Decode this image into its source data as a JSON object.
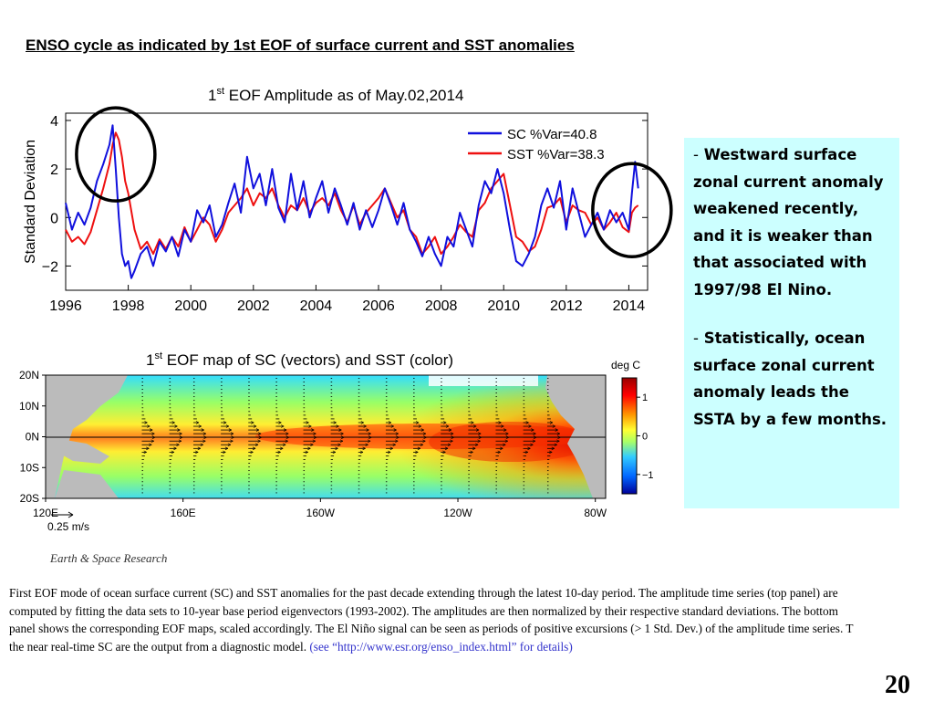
{
  "slide": {
    "title": "ENSO cycle as indicated by 1st EOF of surface current and SST anomalies",
    "page_number": "20",
    "logo_text": "Earth & Space Research"
  },
  "callout": {
    "bullet1_dash": "-",
    "bullet1_text": "Westward  surface zonal current anomaly weakened recently,  and  it is weaker than that associated with 1997/98 El Nino.",
    "bullet2_dash": "-",
    "bullet2_text": "Statistically, ocean surface zonal current anomaly leads the SSTA by a few months."
  },
  "caption": {
    "text": "First EOF mode of  ocean surface current  (SC)  and SST anomalies for the past decade extending through the latest 10-day period. The amplitude time series (top panel) are computed by fitting the data sets to 10-year base period eigenvectors (1993-2002). The amplitudes are then normalized by their respective standard deviations. The bottom panel shows the corresponding EOF maps, scaled accordingly. The El Niño signal can be seen as periods of positive excursions (> 1 Std. Dev.) of the amplitude time series. T the near real-time SC are the output from a diagnostic model. ",
    "link_text": "(see “http://www.esr.org/enso_index.html” for details)"
  },
  "chart_data": [
    {
      "type": "line",
      "title_base": "1",
      "title_sup": "st",
      "title_rest": " EOF Amplitude as of May.02,2014",
      "ylabel": "Standard Deviation",
      "xlim": [
        1996,
        2014.6
      ],
      "ylim": [
        -3,
        4.3
      ],
      "xticks": [
        1996,
        1998,
        2000,
        2002,
        2004,
        2006,
        2008,
        2010,
        2012,
        2014
      ],
      "yticks": [
        -2,
        0,
        2,
        4
      ],
      "legend_position": "top-right",
      "colors": {
        "SC": "#1010dd",
        "SST": "#ee1010"
      },
      "series": [
        {
          "name": "SC %Var=40.8",
          "x": [
            1996.0,
            1996.2,
            1996.4,
            1996.6,
            1996.8,
            1997.0,
            1997.2,
            1997.4,
            1997.5,
            1997.6,
            1997.7,
            1997.8,
            1997.9,
            1998.0,
            1998.1,
            1998.2,
            1998.4,
            1998.6,
            1998.8,
            1999.0,
            1999.2,
            1999.4,
            1999.6,
            1999.8,
            2000.0,
            2000.2,
            2000.4,
            2000.6,
            2000.8,
            2001.0,
            2001.2,
            2001.4,
            2001.6,
            2001.8,
            2002.0,
            2002.2,
            2002.4,
            2002.6,
            2002.8,
            2003.0,
            2003.2,
            2003.4,
            2003.6,
            2003.8,
            2004.0,
            2004.2,
            2004.4,
            2004.6,
            2004.8,
            2005.0,
            2005.2,
            2005.4,
            2005.6,
            2005.8,
            2006.0,
            2006.2,
            2006.4,
            2006.6,
            2006.8,
            2007.0,
            2007.2,
            2007.4,
            2007.6,
            2007.8,
            2008.0,
            2008.2,
            2008.4,
            2008.6,
            2008.8,
            2009.0,
            2009.2,
            2009.4,
            2009.6,
            2009.8,
            2010.0,
            2010.2,
            2010.4,
            2010.6,
            2010.8,
            2011.0,
            2011.2,
            2011.4,
            2011.6,
            2011.8,
            2012.0,
            2012.2,
            2012.4,
            2012.6,
            2012.8,
            2013.0,
            2013.2,
            2013.4,
            2013.6,
            2013.8,
            2014.0,
            2014.1,
            2014.2,
            2014.3
          ],
          "y": [
            0.6,
            -0.5,
            0.2,
            -0.3,
            0.4,
            1.5,
            2.2,
            3.0,
            3.8,
            2.0,
            0.0,
            -1.5,
            -2.0,
            -1.8,
            -2.5,
            -2.2,
            -1.5,
            -1.2,
            -2.0,
            -1.0,
            -1.4,
            -0.8,
            -1.6,
            -0.5,
            -1.0,
            0.3,
            -0.2,
            0.5,
            -0.8,
            -0.3,
            0.6,
            1.4,
            0.2,
            2.5,
            1.2,
            1.8,
            0.5,
            2.0,
            0.4,
            -0.2,
            1.8,
            0.3,
            1.5,
            0.0,
            0.8,
            1.5,
            0.2,
            1.2,
            0.5,
            -0.3,
            0.6,
            -0.5,
            0.3,
            -0.4,
            0.3,
            1.2,
            0.5,
            -0.3,
            0.6,
            -0.5,
            -1.0,
            -1.6,
            -0.8,
            -1.5,
            -2.0,
            -0.8,
            -1.2,
            0.2,
            -0.5,
            -1.2,
            0.5,
            1.5,
            1.0,
            2.0,
            1.0,
            -0.5,
            -1.8,
            -2.0,
            -1.5,
            -0.8,
            0.5,
            1.2,
            0.4,
            1.5,
            -0.5,
            1.2,
            0.2,
            -0.8,
            -0.3,
            0.2,
            -0.5,
            0.3,
            -0.2,
            0.2,
            -0.5,
            1.0,
            2.3,
            1.2
          ]
        },
        {
          "name": "SST %Var=38.3",
          "x": [
            1996.0,
            1996.2,
            1996.4,
            1996.6,
            1996.8,
            1997.0,
            1997.2,
            1997.4,
            1997.5,
            1997.6,
            1997.7,
            1997.8,
            1997.9,
            1998.0,
            1998.2,
            1998.4,
            1998.6,
            1998.8,
            1999.0,
            1999.2,
            1999.4,
            1999.6,
            1999.8,
            2000.0,
            2000.2,
            2000.4,
            2000.6,
            2000.8,
            2001.0,
            2001.2,
            2001.4,
            2001.6,
            2001.8,
            2002.0,
            2002.2,
            2002.4,
            2002.6,
            2002.8,
            2003.0,
            2003.2,
            2003.4,
            2003.6,
            2003.8,
            2004.0,
            2004.2,
            2004.4,
            2004.6,
            2004.8,
            2005.0,
            2005.2,
            2005.4,
            2005.6,
            2005.8,
            2006.0,
            2006.2,
            2006.4,
            2006.6,
            2006.8,
            2007.0,
            2007.2,
            2007.4,
            2007.6,
            2007.8,
            2008.0,
            2008.2,
            2008.4,
            2008.6,
            2008.8,
            2009.0,
            2009.2,
            2009.4,
            2009.6,
            2009.8,
            2010.0,
            2010.2,
            2010.4,
            2010.6,
            2010.8,
            2011.0,
            2011.2,
            2011.4,
            2011.6,
            2011.8,
            2012.0,
            2012.2,
            2012.4,
            2012.6,
            2012.8,
            2013.0,
            2013.2,
            2013.4,
            2013.6,
            2013.8,
            2014.0,
            2014.1,
            2014.2,
            2014.3
          ],
          "y": [
            -0.5,
            -1.0,
            -0.8,
            -1.1,
            -0.6,
            0.3,
            1.2,
            2.2,
            3.0,
            3.5,
            3.2,
            2.5,
            1.5,
            1.0,
            -0.5,
            -1.3,
            -1.0,
            -1.5,
            -0.9,
            -1.3,
            -0.8,
            -1.2,
            -0.4,
            -1.0,
            -0.5,
            0.0,
            -0.3,
            -1.0,
            -0.5,
            0.2,
            0.5,
            0.8,
            1.2,
            0.5,
            1.0,
            0.8,
            1.2,
            0.5,
            0.0,
            0.5,
            0.3,
            0.8,
            0.2,
            0.6,
            0.8,
            0.5,
            1.0,
            0.3,
            -0.2,
            0.5,
            -0.3,
            0.2,
            0.5,
            0.8,
            1.2,
            0.6,
            0.0,
            0.3,
            -0.5,
            -0.8,
            -1.5,
            -1.2,
            -0.8,
            -1.5,
            -1.2,
            -0.8,
            -0.3,
            -0.6,
            -0.8,
            0.3,
            0.6,
            1.2,
            1.5,
            1.8,
            0.5,
            -0.8,
            -1.0,
            -1.4,
            -1.2,
            -0.5,
            0.4,
            0.5,
            0.8,
            -0.2,
            0.5,
            0.3,
            0.2,
            -0.3,
            0.0,
            -0.5,
            -0.2,
            0.2,
            -0.4,
            -0.6,
            0.2,
            0.4,
            0.5
          ]
        }
      ],
      "annotations": [
        {
          "shape": "ellipse",
          "center_x": 1997.6,
          "center_y": 2.6,
          "meaning": "1997/98 El Nino"
        },
        {
          "shape": "ellipse",
          "center_x": 2014.1,
          "center_y": 0.3,
          "meaning": "recent period"
        }
      ]
    },
    {
      "type": "heatmap",
      "title_base": "1",
      "title_sup": "st",
      "title_rest": " EOF map of SC (vectors) and SST (color)",
      "xticks": [
        "120E",
        "160E",
        "160W",
        "120W",
        "80W"
      ],
      "xtick_lon": [
        120,
        160,
        200,
        240,
        280
      ],
      "yticks": [
        "20N",
        "10N",
        "0N",
        "10S",
        "20S"
      ],
      "ytick_lat": [
        20,
        10,
        0,
        -10,
        -20
      ],
      "lon_range": [
        120,
        283
      ],
      "lat_range": [
        -20,
        20
      ],
      "colorbar": {
        "label": "deg C",
        "ticks": [
          "1",
          "0",
          "−1"
        ],
        "tick_values": [
          1,
          0,
          -1
        ],
        "range": [
          -1.5,
          1.5
        ]
      },
      "vector_scale_label": "0.25 m/s",
      "vector_columns_lon": [
        148,
        156,
        163,
        171,
        179,
        187,
        195,
        203,
        211,
        219,
        227,
        235,
        243,
        251,
        259,
        266
      ]
    }
  ]
}
